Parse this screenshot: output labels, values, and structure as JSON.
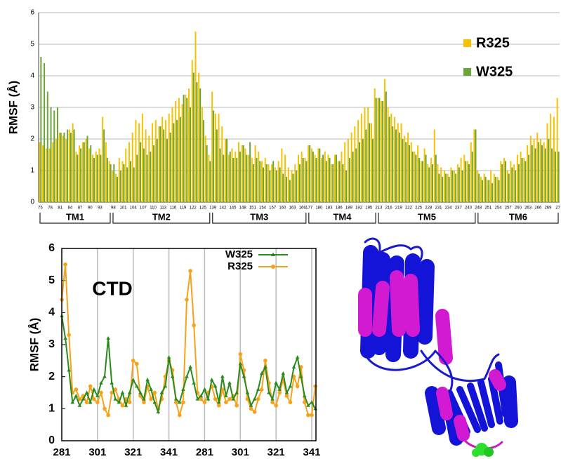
{
  "chart_data": [
    {
      "type": "bar",
      "ylabel": "RMSF (Å)",
      "ylim": [
        0,
        6
      ],
      "yticks": [
        0,
        1,
        2,
        3,
        4,
        5,
        6
      ],
      "grid": true,
      "groups": [
        "TM1",
        "TM2",
        "TM3",
        "TM4",
        "TM5",
        "TM6"
      ],
      "categories": [
        "75",
        null,
        null,
        "78",
        null,
        null,
        "81",
        null,
        null,
        "84",
        null,
        null,
        "87",
        null,
        null,
        "90",
        null,
        null,
        "93",
        null,
        null,
        null,
        "98",
        null,
        null,
        "101",
        null,
        null,
        "104",
        null,
        null,
        "107",
        null,
        null,
        "110",
        null,
        null,
        "113",
        null,
        null,
        "116",
        null,
        null,
        "119",
        null,
        null,
        "122",
        null,
        null,
        "125",
        null,
        null,
        "139",
        null,
        null,
        "142",
        null,
        null,
        "145",
        null,
        null,
        "148",
        null,
        null,
        "151",
        null,
        null,
        "154",
        null,
        null,
        "157",
        null,
        null,
        "160",
        null,
        null,
        "163",
        null,
        null,
        "166",
        null,
        "177",
        null,
        null,
        "180",
        null,
        null,
        "183",
        null,
        null,
        "186",
        null,
        null,
        "189",
        null,
        null,
        "192",
        null,
        null,
        "195",
        null,
        null,
        "213",
        null,
        null,
        "216",
        null,
        null,
        "219",
        null,
        null,
        "222",
        null,
        null,
        "225",
        null,
        null,
        "228",
        null,
        null,
        "231",
        null,
        null,
        "234",
        null,
        null,
        "237",
        null,
        null,
        "240",
        null,
        null,
        "248",
        null,
        null,
        "251",
        null,
        null,
        "254",
        null,
        null,
        "257",
        null,
        null,
        "260",
        null,
        null,
        "263",
        null,
        null,
        "266",
        null,
        null,
        "269",
        null,
        null,
        "27"
      ],
      "series": [
        {
          "name": "R325",
          "color": "#f5c200",
          "values": [
            1.9,
            1.8,
            1.7,
            1.7,
            1.9,
            2.0,
            2.2,
            2.1,
            2.0,
            2.3,
            2.5,
            1.6,
            1.8,
            1.9,
            2.0,
            1.7,
            1.5,
            1.6,
            1.7,
            2.7,
            1.9,
            1.3,
            1.0,
            0.9,
            1.4,
            1.3,
            1.7,
            1.9,
            2.2,
            2.6,
            2.5,
            2.8,
            2.3,
            2.1,
            2.5,
            2.6,
            2.4,
            2.7,
            2.6,
            2.8,
            3.0,
            3.2,
            3.3,
            3.1,
            3.4,
            3.6,
            4.5,
            5.4,
            4.1,
            3.0,
            2.1,
            1.5,
            3.5,
            2.8,
            2.8,
            2.4,
            2.0,
            1.5,
            1.7,
            1.6,
            1.9,
            1.8,
            1.7,
            1.5,
            1.4,
            1.8,
            1.6,
            1.3,
            1.4,
            1.2,
            1.2,
            1.1,
            1.3,
            1.7,
            1.5,
            1.1,
            1.0,
            1.2,
            1.5,
            1.6,
            1.4,
            1.8,
            1.7,
            1.5,
            1.7,
            1.4,
            1.6,
            1.5,
            1.2,
            1.5,
            1.3,
            1.6,
            1.9,
            2.0,
            2.2,
            2.4,
            2.6,
            2.8,
            3.0,
            3.0,
            2.5,
            3.6,
            3.3,
            3.2,
            3.9,
            3.0,
            2.8,
            2.7,
            2.5,
            2.5,
            2.1,
            2.2,
            1.9,
            1.6,
            1.8,
            1.3,
            1.7,
            1.2,
            1.4,
            2.3,
            1.2,
            1.1,
            1.0,
            0.9,
            1.1,
            1.0,
            1.2,
            1.4,
            1.5,
            1.3,
            1.9,
            2.3,
            1.0,
            0.8,
            0.9,
            0.7,
            1.0,
            0.9,
            0.8,
            1.3,
            1.4,
            1.0,
            1.3,
            1.2,
            1.5,
            1.6,
            1.4,
            1.8,
            2.1,
            2.0,
            2.2,
            2.0,
            1.9,
            2.5,
            2.8,
            2.7,
            3.3
          ]
        },
        {
          "name": "W325",
          "color": "#6aa43a",
          "values": [
            4.6,
            4.4,
            3.5,
            3.0,
            2.9,
            3.0,
            2.2,
            2.2,
            2.3,
            2.2,
            2.3,
            1.5,
            1.7,
            1.9,
            2.1,
            1.8,
            1.4,
            1.5,
            1.5,
            2.3,
            1.4,
            1.2,
            1.2,
            0.8,
            1.0,
            1.2,
            1.1,
            1.3,
            1.1,
            1.5,
            1.9,
            1.7,
            1.5,
            1.6,
            1.8,
            2.0,
            2.4,
            2.3,
            2.0,
            2.2,
            2.5,
            2.6,
            2.7,
            3.4,
            3.3,
            3.0,
            4.1,
            3.8,
            3.6,
            2.6,
            1.8,
            1.3,
            2.9,
            2.3,
            1.7,
            1.5,
            2.0,
            1.6,
            1.4,
            1.4,
            1.6,
            1.8,
            1.5,
            1.9,
            1.2,
            1.4,
            1.3,
            1.1,
            1.2,
            1.0,
            1.3,
            1.0,
            1.1,
            0.9,
            0.8,
            0.7,
            0.9,
            1.0,
            1.2,
            1.4,
            1.3,
            1.8,
            1.6,
            1.4,
            1.7,
            1.5,
            1.3,
            1.4,
            1.2,
            1.5,
            1.3,
            1.2,
            1.0,
            1.4,
            1.6,
            1.7,
            1.9,
            2.0,
            2.3,
            2.5,
            2.0,
            3.3,
            3.3,
            3.2,
            3.5,
            2.7,
            2.4,
            2.3,
            2.2,
            2.0,
            1.9,
            1.8,
            1.6,
            1.5,
            1.4,
            1.3,
            1.5,
            1.1,
            1.2,
            1.5,
            0.9,
            0.8,
            0.9,
            0.8,
            1.0,
            0.9,
            1.1,
            1.0,
            1.3,
            1.2,
            1.6,
            2.3,
            0.9,
            0.7,
            0.8,
            0.7,
            0.6,
            0.8,
            0.7,
            1.2,
            1.3,
            0.9,
            1.1,
            1.0,
            1.2,
            1.4,
            1.3,
            1.5,
            1.8,
            1.7,
            1.9,
            1.8,
            1.7,
            2.0,
            1.7,
            1.6,
            1.6
          ]
        }
      ]
    },
    {
      "type": "line",
      "ylabel": "RMSF (Å)",
      "annotation": "CTD",
      "ylim": [
        0,
        6
      ],
      "yticks": [
        0,
        1,
        2,
        3,
        4,
        5,
        6
      ],
      "grid": true,
      "categories": [
        "281",
        null,
        null,
        null,
        null,
        null,
        null,
        null,
        null,
        null,
        "301",
        null,
        null,
        null,
        null,
        null,
        null,
        null,
        null,
        null,
        "321",
        null,
        null,
        null,
        null,
        null,
        null,
        null,
        null,
        null,
        "341",
        null,
        null,
        null,
        null,
        null,
        null,
        null,
        null,
        null,
        "281",
        null,
        null,
        null,
        null,
        null,
        null,
        null,
        null,
        null,
        "301",
        null,
        null,
        null,
        null,
        null,
        null,
        null,
        null,
        null,
        "321",
        null,
        null,
        null,
        null,
        null,
        null,
        null,
        null,
        null,
        "341",
        null
      ],
      "series": [
        {
          "name": "W325",
          "color": "#2a8a1e",
          "marker": "triangle",
          "values": [
            3.9,
            3.2,
            2.2,
            1.2,
            1.4,
            1.1,
            1.3,
            1.5,
            1.2,
            1.6,
            1.4,
            1.8,
            2.0,
            3.2,
            1.8,
            1.3,
            1.2,
            1.5,
            1.1,
            1.5,
            1.9,
            1.7,
            1.5,
            1.3,
            1.9,
            1.6,
            1.2,
            0.9,
            1.5,
            1.7,
            2.6,
            2.0,
            1.3,
            1.2,
            1.6,
            2.0,
            2.3,
            1.8,
            1.3,
            1.4,
            1.6,
            1.3,
            1.9,
            1.7,
            1.2,
            2.0,
            1.4,
            1.8,
            1.3,
            1.5,
            2.4,
            2.0,
            1.5,
            1.1,
            1.3,
            1.6,
            2.1,
            2.3,
            1.5,
            1.3,
            1.8,
            1.6,
            2.1,
            1.5,
            1.7,
            2.3,
            2.6,
            2.0,
            1.4,
            1.1,
            1.2,
            1.0
          ]
        },
        {
          "name": "R325",
          "color": "#f5a31a",
          "marker": "circle",
          "values": [
            4.4,
            5.5,
            3.3,
            1.5,
            1.6,
            1.3,
            1.4,
            1.2,
            1.7,
            1.3,
            1.2,
            1.5,
            1.0,
            0.8,
            1.5,
            1.6,
            1.3,
            1.1,
            1.3,
            1.2,
            2.5,
            2.4,
            1.4,
            1.2,
            1.7,
            1.3,
            1.5,
            1.0,
            1.3,
            2.0,
            2.5,
            2.2,
            1.2,
            0.8,
            1.2,
            4.4,
            5.3,
            3.6,
            1.5,
            1.3,
            1.2,
            1.5,
            1.7,
            1.3,
            1.1,
            1.6,
            1.2,
            1.3,
            1.4,
            1.1,
            2.7,
            2.2,
            1.3,
            1.0,
            0.9,
            1.3,
            1.6,
            2.5,
            1.8,
            1.2,
            1.1,
            1.5,
            1.9,
            1.4,
            1.2,
            2.0,
            1.7,
            2.3,
            1.2,
            0.8,
            0.8,
            1.7
          ]
        }
      ]
    }
  ]
}
